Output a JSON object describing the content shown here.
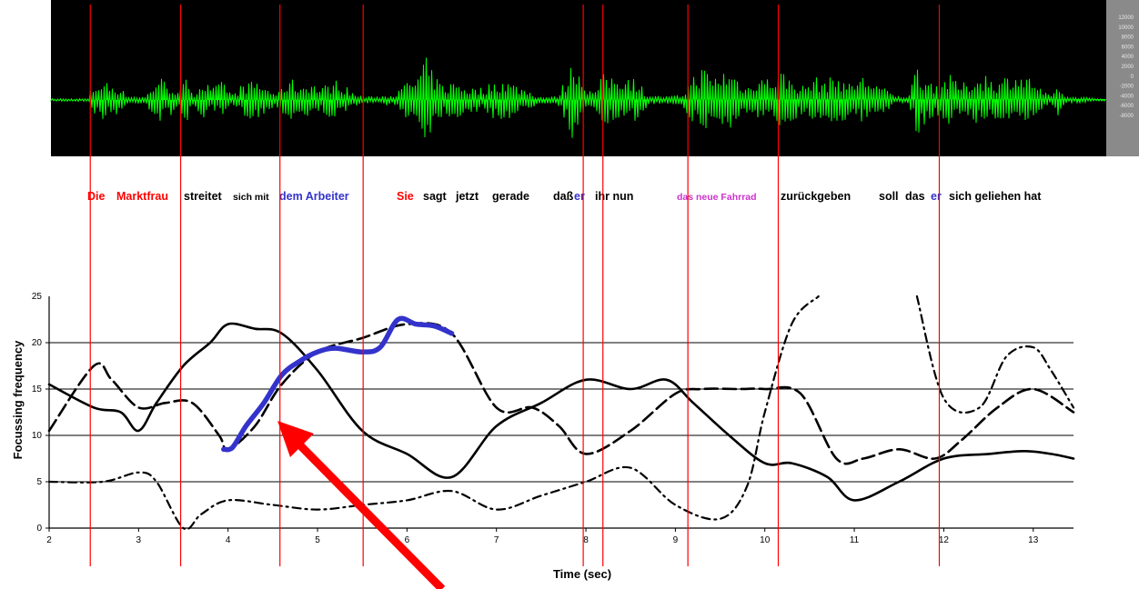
{
  "sentence": [
    {
      "text": "Die",
      "color": "#ff0000",
      "size": "big"
    },
    {
      "text": "Marktfrau",
      "color": "#ff0000",
      "size": "big"
    },
    {
      "text": "streitet",
      "color": "#000000",
      "size": "big"
    },
    {
      "text": "sich mit",
      "color": "#000000",
      "size": "small"
    },
    {
      "text": "dem Arbeiter",
      "color": "#3333cc",
      "size": "big"
    },
    {
      "text": "Sie",
      "color": "#ff0000",
      "size": "big"
    },
    {
      "text": "sagt",
      "color": "#000000",
      "size": "big"
    },
    {
      "text": "jetzt",
      "color": "#000000",
      "size": "big"
    },
    {
      "text": "gerade",
      "color": "#000000",
      "size": "big"
    },
    {
      "text": "daß",
      "color": "#000000",
      "size": "big"
    },
    {
      "text": "er",
      "color": "#3333cc",
      "size": "big"
    },
    {
      "text": "ihr nun",
      "color": "#000000",
      "size": "big"
    },
    {
      "text": "das neue Fahrrad",
      "color": "#cc33cc",
      "size": "small"
    },
    {
      "text": "zurückgeben",
      "color": "#000000",
      "size": "big"
    },
    {
      "text": "soll",
      "color": "#000000",
      "size": "big"
    },
    {
      "text": "das",
      "color": "#000000",
      "size": "big"
    },
    {
      "text": "er",
      "color": "#3333cc",
      "size": "big"
    },
    {
      "text": "sich geliehen hat",
      "color": "#000000",
      "size": "big"
    }
  ],
  "waveform": {
    "scale_labels": [
      "12000",
      "10000",
      "8000",
      "6000",
      "4000",
      "2000",
      "0",
      "-2000",
      "-4000",
      "-6000",
      "-8000"
    ],
    "background": "#000000",
    "wave_color": "#00ff00"
  },
  "colors": {
    "boundary": "#ff0000",
    "arrow": "#ff0000",
    "highlight_series": "#3333cc",
    "series": "#000000"
  },
  "chart_data": {
    "type": "line",
    "title": "",
    "xlabel": "Time (sec)",
    "ylabel": "Focussing frequency",
    "xlim": [
      2,
      13.45
    ],
    "ylim": [
      0,
      25
    ],
    "xticks": [
      2,
      3,
      4,
      5,
      6,
      7,
      8,
      9,
      10,
      11,
      12,
      13
    ],
    "yticks": [
      0,
      5,
      10,
      15,
      20
    ],
    "y_top_label": "25",
    "grid": "horizontal",
    "word_boundaries_sec": [
      2.46,
      3.47,
      4.58,
      5.51,
      7.97,
      8.19,
      9.14,
      10.15,
      11.95
    ],
    "series": [
      {
        "style": "solid",
        "color": "#000000",
        "x": [
          2,
          2.5,
          2.8,
          3.0,
          3.2,
          3.5,
          3.8,
          4.0,
          4.3,
          4.6,
          5.0,
          5.5,
          6.0,
          6.5,
          7.0,
          7.5,
          8.0,
          8.5,
          8.9,
          9.2,
          9.6,
          10.0,
          10.3,
          10.7,
          11.0,
          11.5,
          12.0,
          12.5,
          12.9,
          13.2,
          13.45
        ],
        "y": [
          15.5,
          13,
          12.5,
          10.5,
          13.5,
          17.5,
          20,
          22,
          21.5,
          21,
          17,
          10.5,
          8,
          5.5,
          11,
          13.5,
          16,
          15,
          16,
          13.5,
          10,
          7,
          7,
          5.5,
          3,
          5,
          7.5,
          8,
          8.3,
          8,
          7.5
        ]
      },
      {
        "style": "long-dash",
        "color": "#000000",
        "x": [
          2,
          2.5,
          2.7,
          3.0,
          3.3,
          3.6,
          3.9,
          4.0,
          4.3,
          4.6,
          5.0,
          5.5,
          6.0,
          6.5,
          7.0,
          7.4,
          7.7,
          8.0,
          8.5,
          9.0,
          9.3,
          9.7,
          10.0,
          10.4,
          10.8,
          11.1,
          11.5,
          11.9,
          12.2,
          12.6,
          13.0,
          13.45
        ],
        "y": [
          10.5,
          17.5,
          16,
          13,
          13.5,
          13.5,
          10,
          8.5,
          11,
          15.5,
          19,
          20.5,
          22,
          21,
          13,
          13,
          11,
          8,
          10.5,
          14.5,
          15,
          15,
          15,
          14.5,
          7.5,
          7.5,
          8.5,
          7.5,
          9.5,
          13,
          15,
          12.5
        ]
      },
      {
        "style": "dash-dot",
        "color": "#000000",
        "x": [
          2,
          2.6,
          3.0,
          3.2,
          3.5,
          3.7,
          4.0,
          4.5,
          5.0,
          5.5,
          6.0,
          6.5,
          7.0,
          7.5,
          8.0,
          8.5,
          9.0,
          9.5,
          9.8,
          10.0,
          10.3,
          10.6
        ],
        "y": [
          5,
          5,
          6,
          5,
          0,
          1.5,
          3,
          2.5,
          2,
          2.5,
          3,
          4,
          2,
          3.5,
          5,
          6.5,
          2.5,
          1,
          4.5,
          12.5,
          22,
          25
        ]
      },
      {
        "style": "dash-dot",
        "color": "#000000",
        "x": [
          11.7,
          12.0,
          12.4,
          12.7,
          13.0,
          13.2,
          13.45
        ],
        "y": [
          25,
          14,
          13,
          18.5,
          19.5,
          17,
          13
        ]
      },
      {
        "style": "thick-solid",
        "color": "#3333cc",
        "x": [
          3.95,
          4.05,
          4.2,
          4.4,
          4.6,
          4.8,
          5.0,
          5.2,
          5.5,
          5.7,
          5.9,
          6.1,
          6.3,
          6.5
        ],
        "y": [
          8.5,
          8.7,
          11,
          13.5,
          16.5,
          18,
          19,
          19.4,
          19,
          19.5,
          22.5,
          22,
          21.8,
          21
        ]
      }
    ]
  }
}
